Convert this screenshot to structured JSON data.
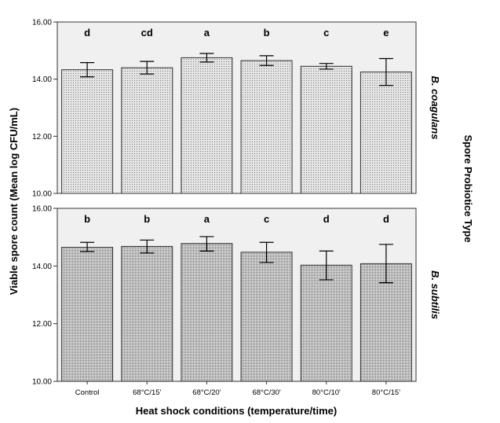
{
  "chart_data": {
    "type": "bar",
    "ylabel": "Viable spore count (Mean log CFU/mL)",
    "xlabel": "Heat shock conditions (temperature/time)",
    "facet_label": "Spore Probiotice Type",
    "categories": [
      "Control",
      "68°C/15'",
      "68°C/20'",
      "68°C/30'",
      "80°C/10'",
      "80°C/15'"
    ],
    "ylim": [
      10,
      16
    ],
    "yticks": [
      "10.00",
      "12.00",
      "14.00",
      "16.00"
    ],
    "grid": false,
    "panels": [
      {
        "name": "B. coagulans",
        "values": [
          14.33,
          14.4,
          14.75,
          14.65,
          14.45,
          14.25
        ],
        "err_low": [
          14.08,
          14.18,
          14.6,
          14.48,
          14.35,
          13.78
        ],
        "err_high": [
          14.58,
          14.62,
          14.9,
          14.82,
          14.55,
          14.72
        ],
        "letters": [
          "d",
          "cd",
          "a",
          "b",
          "c",
          "e"
        ]
      },
      {
        "name": "B. subtilis",
        "values": [
          14.65,
          14.68,
          14.78,
          14.48,
          14.03,
          14.08
        ],
        "err_low": [
          14.5,
          14.45,
          14.52,
          14.12,
          13.52,
          13.42
        ],
        "err_high": [
          14.82,
          14.9,
          15.02,
          14.82,
          14.52,
          14.75
        ],
        "letters": [
          "b",
          "b",
          "a",
          "c",
          "d",
          "d"
        ]
      }
    ]
  }
}
